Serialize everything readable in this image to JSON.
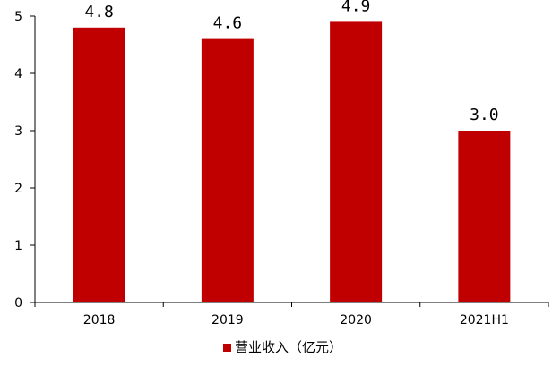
{
  "chart_data": {
    "type": "bar",
    "categories": [
      "2018",
      "2019",
      "2020",
      "2021H1"
    ],
    "series": [
      {
        "name": "营业收入（亿元）",
        "values": [
          4.8,
          4.6,
          4.9,
          3.0
        ],
        "color": "#c00000"
      }
    ],
    "data_labels": [
      "4.8",
      "4.6",
      "4.9",
      "3.0"
    ],
    "ylim": [
      0,
      5
    ],
    "yticks": [
      0,
      1,
      2,
      3,
      4,
      5
    ],
    "grid": false,
    "legend_position": "bottom-center"
  }
}
